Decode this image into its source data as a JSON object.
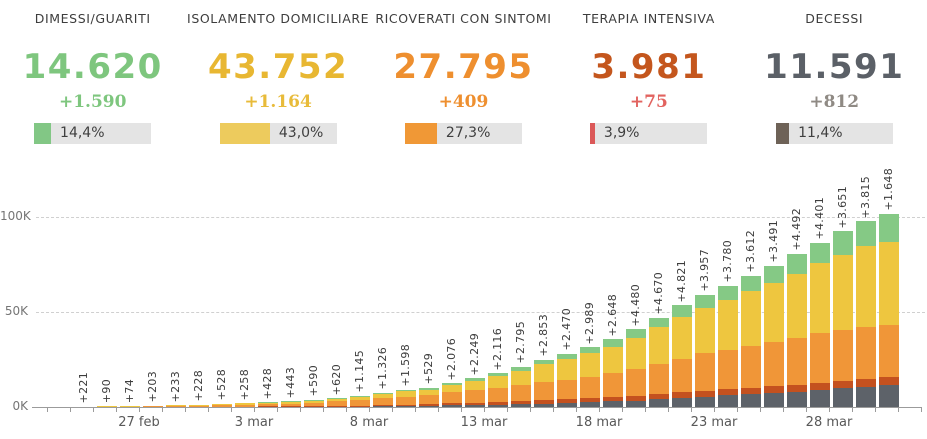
{
  "cards": [
    {
      "title": "DIMESSI/GUARITI",
      "value": "14.620",
      "delta": "+1.590",
      "pct_label": "14,4%",
      "pct": 14.4,
      "value_color": "#7ec67e",
      "delta_color": "#7ec67e",
      "fill_color": "#82c785"
    },
    {
      "title": "ISOLAMENTO DOMICILIARE",
      "value": "43.752",
      "delta": "+1.164",
      "pct_label": "43,0%",
      "pct": 43.0,
      "value_color": "#e8b732",
      "delta_color": "#e8bb3a",
      "fill_color": "#edcb5d"
    },
    {
      "title": "RICOVERATI CON SINTOMI",
      "value": "27.795",
      "delta": "+409",
      "pct_label": "27,3%",
      "pct": 27.3,
      "value_color": "#ee8f2f",
      "delta_color": "#ee8f2f",
      "fill_color": "#f09836"
    },
    {
      "title": "TERAPIA INTENSIVA",
      "value": "3.981",
      "delta": "+75",
      "pct_label": "3,9%",
      "pct": 3.9,
      "value_color": "#c4561d",
      "delta_color": "#e2635f",
      "fill_color": "#db5858"
    },
    {
      "title": "DECESSI",
      "value": "11.591",
      "delta": "+812",
      "pct_label": "11,4%",
      "pct": 11.4,
      "value_color": "#5b6067",
      "delta_color": "#8f8a84",
      "fill_color": "#6e6257"
    }
  ],
  "chart_data": {
    "type": "bar",
    "stacked": true,
    "title": "",
    "xlabel": "",
    "ylabel": "",
    "grid": "horizontal-dashed",
    "legend": "none",
    "y_max": 105000,
    "y_ticks": [
      {
        "label": "0K",
        "value": 0
      },
      {
        "label": "50K",
        "value": 50000
      },
      {
        "label": "100K",
        "value": 100000
      }
    ],
    "x_ticks": [
      {
        "index": 3,
        "label": "27 feb"
      },
      {
        "index": 8,
        "label": "3 mar"
      },
      {
        "index": 13,
        "label": "8 mar"
      },
      {
        "index": 18,
        "label": "13 mar"
      },
      {
        "index": 23,
        "label": "18 mar"
      },
      {
        "index": 28,
        "label": "23 mar"
      },
      {
        "index": 33,
        "label": "28 mar"
      }
    ],
    "dates": [
      "24 feb",
      "25 feb",
      "26 feb",
      "27 feb",
      "28 feb",
      "29 feb",
      "1 mar",
      "2 mar",
      "3 mar",
      "4 mar",
      "5 mar",
      "6 mar",
      "7 mar",
      "8 mar",
      "9 mar",
      "10 mar",
      "11 mar",
      "12 mar",
      "13 mar",
      "14 mar",
      "15 mar",
      "16 mar",
      "17 mar",
      "18 mar",
      "19 mar",
      "20 mar",
      "21 mar",
      "22 mar",
      "23 mar",
      "24 mar",
      "25 mar",
      "26 mar",
      "27 mar",
      "28 mar",
      "29 mar",
      "30 mar"
    ],
    "bar_labels": [
      "+221",
      "+90",
      "+74",
      "+203",
      "+233",
      "+228",
      "+528",
      "+258",
      "+428",
      "+443",
      "+590",
      "+620",
      "+1.145",
      "+1.326",
      "+1.598",
      "+529",
      "+2.076",
      "+2.249",
      "+2.116",
      "+2.795",
      "+2.853",
      "+2.470",
      "+2.989",
      "+2.648",
      "+4.480",
      "+4.670",
      "+4.821",
      "+3.957",
      "+3.780",
      "+3.612",
      "+3.491",
      "+4.492",
      "+4.401",
      "+3.651",
      "+3.815",
      "+1.648"
    ],
    "series": [
      {
        "name": "decessi",
        "color": "#5d6269",
        "values": [
          7,
          10,
          12,
          17,
          21,
          29,
          34,
          52,
          79,
          107,
          148,
          197,
          233,
          366,
          463,
          631,
          827,
          1016,
          1266,
          1441,
          1809,
          2158,
          2503,
          2978,
          3405,
          4032,
          4825,
          5476,
          6077,
          6820,
          7503,
          8165,
          9134,
          10023,
          10779,
          11591
        ]
      },
      {
        "name": "terapia intensiva",
        "color": "#c4511f",
        "values": [
          26,
          35,
          36,
          56,
          64,
          105,
          140,
          166,
          229,
          295,
          351,
          462,
          567,
          650,
          733,
          877,
          1028,
          1153,
          1328,
          1518,
          1672,
          1851,
          2060,
          2257,
          2498,
          2655,
          2857,
          3009,
          3204,
          3396,
          3489,
          3612,
          3732,
          3856,
          3906,
          3981
        ]
      },
      {
        "name": "ricoverati con sintomi",
        "color": "#f09638",
        "values": [
          101,
          114,
          128,
          248,
          345,
          401,
          639,
          742,
          1034,
          1346,
          1790,
          2394,
          2651,
          3557,
          4316,
          5038,
          5838,
          6650,
          7426,
          8372,
          9663,
          10197,
          11025,
          12894,
          14363,
          15757,
          17708,
          19846,
          20692,
          21937,
          23112,
          24753,
          26029,
          26676,
          27386,
          27795
        ]
      },
      {
        "name": "isolamento domiciliare",
        "color": "#eec63f",
        "values": [
          94,
          162,
          221,
          284,
          412,
          543,
          798,
          927,
          1000,
          1065,
          1155,
          1060,
          1843,
          2180,
          2936,
          2599,
          3724,
          5036,
          6201,
          7860,
          9268,
          11025,
          12977,
          13559,
          16329,
          19448,
          22116,
          23783,
          26522,
          28697,
          30920,
          33648,
          36653,
          39533,
          42588,
          43752
        ]
      },
      {
        "name": "dimessi/guariti",
        "color": "#85c985",
        "values": [
          1,
          1,
          3,
          45,
          46,
          50,
          83,
          149,
          160,
          276,
          414,
          523,
          589,
          622,
          724,
          1004,
          1045,
          1258,
          1439,
          1966,
          2335,
          2749,
          2941,
          4025,
          4440,
          5129,
          6072,
          7024,
          7432,
          8326,
          9362,
          10361,
          10950,
          12384,
          13030,
          14620
        ]
      }
    ]
  }
}
